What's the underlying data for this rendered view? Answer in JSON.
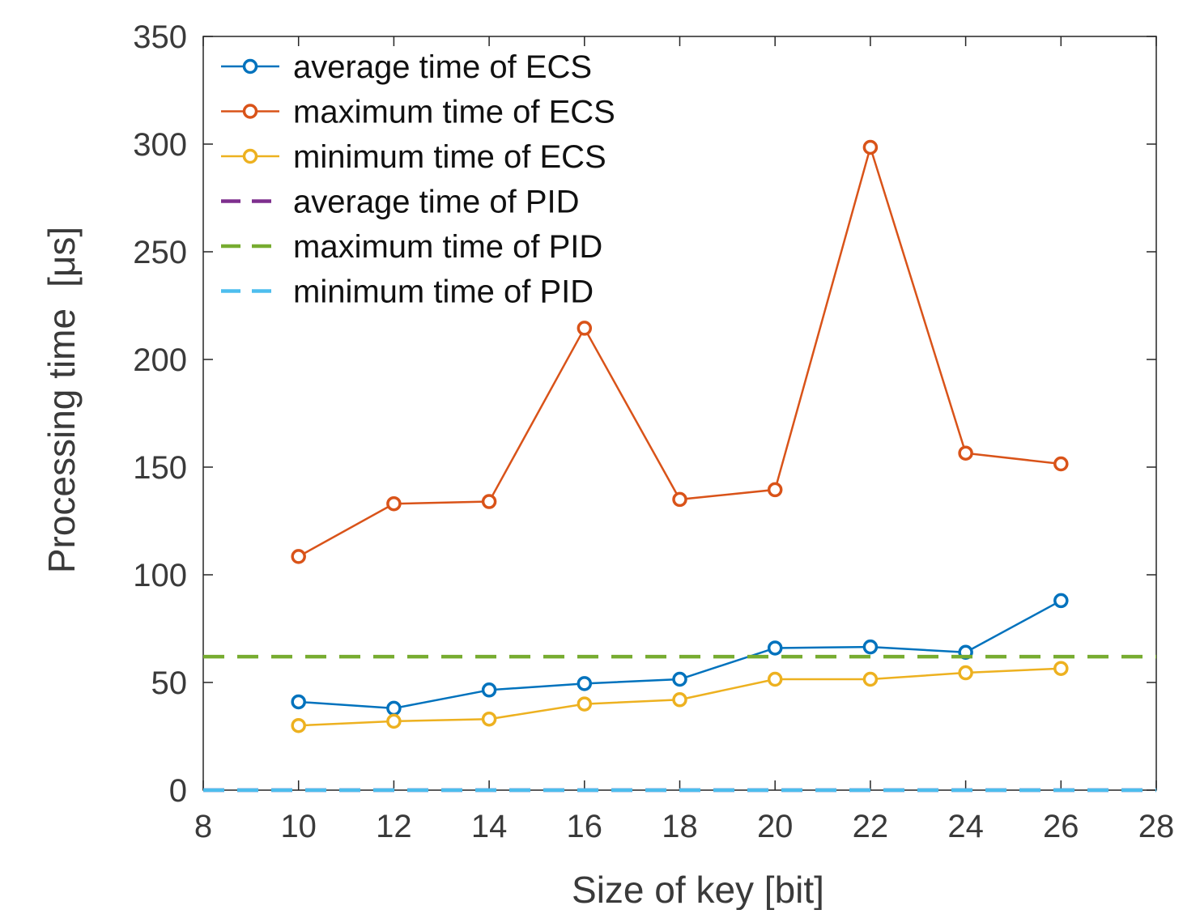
{
  "chart_data": {
    "type": "line",
    "xlabel": "Size of key  [bit]",
    "ylabel_text": "Processing  time",
    "ylabel_unit": "[μs]",
    "xlim": [
      8,
      28
    ],
    "ylim": [
      0,
      350
    ],
    "xticks": [
      8,
      10,
      12,
      14,
      16,
      18,
      20,
      22,
      24,
      26,
      28
    ],
    "yticks": [
      0,
      50,
      100,
      150,
      200,
      250,
      300,
      350
    ],
    "grid": false,
    "legend_position": "top-left",
    "x": [
      10,
      12,
      14,
      16,
      18,
      20,
      22,
      24,
      26
    ],
    "series": [
      {
        "name": "average time  of  ECS",
        "style": "solid-circle",
        "color": "#0072BD",
        "values": [
          41,
          38,
          46.5,
          49.5,
          51.5,
          66,
          66.5,
          64,
          88
        ]
      },
      {
        "name": "maximum time  of  ECS",
        "style": "solid-circle",
        "color": "#D95319",
        "values": [
          108.5,
          133,
          134,
          214.5,
          135,
          139.5,
          298.5,
          156.5,
          151.5
        ]
      },
      {
        "name": "minimum  time of  ECS",
        "style": "solid-circle",
        "color": "#EDB120",
        "values": [
          30,
          32,
          33,
          40,
          42,
          51.5,
          51.5,
          54.5,
          56.5
        ]
      },
      {
        "name": "average  time of  PID",
        "style": "dashed",
        "color": "#7E2F8E",
        "constant": 0
      },
      {
        "name": "maximum time  of  PID",
        "style": "dashed",
        "color": "#77AC30",
        "constant": 62
      },
      {
        "name": "minimum time  of  PID",
        "style": "dashed",
        "color": "#4DBEEE",
        "constant": 0
      }
    ]
  }
}
